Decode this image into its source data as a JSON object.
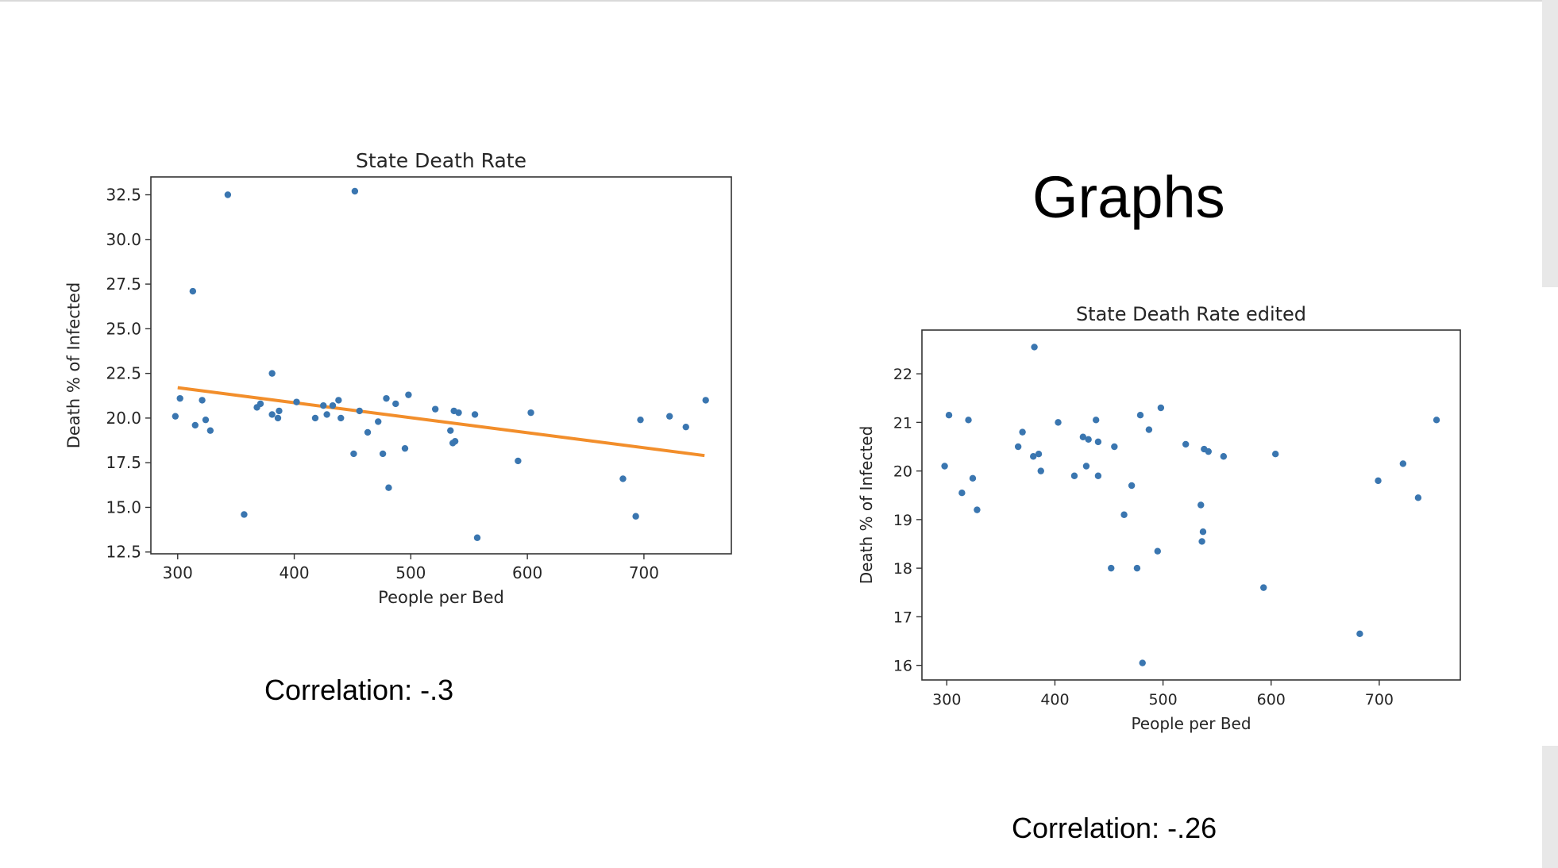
{
  "heading": "Graphs",
  "captions": {
    "left": "Correlation: -.3",
    "right": "Correlation: -.26"
  },
  "colors": {
    "points": "#3a76b0",
    "trend": "#f28e2b",
    "axes": "#333333",
    "side_strip": "#e8e8e8"
  },
  "chart_data": [
    {
      "type": "scatter",
      "title": "State Death Rate",
      "xlabel": "People per Bed",
      "ylabel": "Death % of Infected",
      "xlim": [
        277,
        775
      ],
      "ylim": [
        12.4,
        33.5
      ],
      "xticks": [
        300,
        400,
        500,
        600,
        700
      ],
      "yticks": [
        12.5,
        15.0,
        17.5,
        20.0,
        22.5,
        25.0,
        27.5,
        30.0,
        32.5
      ],
      "ytick_labels": [
        "12.5",
        "15.0",
        "17.5",
        "20.0",
        "22.5",
        "25.0",
        "27.5",
        "30.0",
        "32.5"
      ],
      "grid": false,
      "trendline": {
        "x": [
          300,
          752
        ],
        "y": [
          21.7,
          17.9
        ]
      },
      "points": [
        [
          298,
          20.1
        ],
        [
          302,
          21.1
        ],
        [
          313,
          27.1
        ],
        [
          315,
          19.6
        ],
        [
          321,
          21.0
        ],
        [
          324,
          19.9
        ],
        [
          328,
          19.3
        ],
        [
          343,
          32.5
        ],
        [
          357,
          14.6
        ],
        [
          368,
          20.6
        ],
        [
          371,
          20.8
        ],
        [
          381,
          22.5
        ],
        [
          381,
          20.2
        ],
        [
          386,
          20.0
        ],
        [
          387,
          20.4
        ],
        [
          402,
          20.9
        ],
        [
          418,
          20.0
        ],
        [
          425,
          20.7
        ],
        [
          428,
          20.2
        ],
        [
          433,
          20.7
        ],
        [
          438,
          21.0
        ],
        [
          440,
          20.0
        ],
        [
          451,
          18.0
        ],
        [
          452,
          32.7
        ],
        [
          456,
          20.4
        ],
        [
          463,
          19.2
        ],
        [
          472,
          19.8
        ],
        [
          476,
          18.0
        ],
        [
          479,
          21.1
        ],
        [
          481,
          16.1
        ],
        [
          487,
          20.8
        ],
        [
          495,
          18.3
        ],
        [
          498,
          21.3
        ],
        [
          521,
          20.5
        ],
        [
          534,
          19.3
        ],
        [
          536,
          18.6
        ],
        [
          537,
          20.4
        ],
        [
          538,
          18.7
        ],
        [
          541,
          20.3
        ],
        [
          555,
          20.2
        ],
        [
          557,
          13.3
        ],
        [
          592,
          17.6
        ],
        [
          603,
          20.3
        ],
        [
          682,
          16.6
        ],
        [
          693,
          14.5
        ],
        [
          697,
          19.9
        ],
        [
          722,
          20.1
        ],
        [
          736,
          19.5
        ],
        [
          753,
          21.0
        ]
      ]
    },
    {
      "type": "scatter",
      "title": "State Death Rate edited",
      "xlabel": "People per Bed",
      "ylabel": "Death % of Infected",
      "xlim": [
        277,
        775
      ],
      "ylim": [
        15.7,
        22.9
      ],
      "xticks": [
        300,
        400,
        500,
        600,
        700
      ],
      "yticks": [
        16,
        17,
        18,
        19,
        20,
        21,
        22
      ],
      "ytick_labels": [
        "16",
        "17",
        "18",
        "19",
        "20",
        "21",
        "22"
      ],
      "grid": false,
      "points": [
        [
          298,
          20.1
        ],
        [
          302,
          21.15
        ],
        [
          314,
          19.55
        ],
        [
          320,
          21.05
        ],
        [
          324,
          19.85
        ],
        [
          328,
          19.2
        ],
        [
          366,
          20.5
        ],
        [
          370,
          20.8
        ],
        [
          380,
          20.3
        ],
        [
          381,
          22.55
        ],
        [
          385,
          20.35
        ],
        [
          387,
          20.0
        ],
        [
          403,
          21.0
        ],
        [
          418,
          19.9
        ],
        [
          426,
          20.7
        ],
        [
          429,
          20.1
        ],
        [
          431,
          20.65
        ],
        [
          438,
          21.05
        ],
        [
          440,
          19.9
        ],
        [
          440,
          20.6
        ],
        [
          452,
          18.0
        ],
        [
          455,
          20.5
        ],
        [
          464,
          19.1
        ],
        [
          471,
          19.7
        ],
        [
          476,
          18.0
        ],
        [
          479,
          21.15
        ],
        [
          481,
          16.05
        ],
        [
          487,
          20.85
        ],
        [
          495,
          18.35
        ],
        [
          498,
          21.3
        ],
        [
          521,
          20.55
        ],
        [
          535,
          19.3
        ],
        [
          536,
          18.55
        ],
        [
          537,
          18.75
        ],
        [
          538,
          20.45
        ],
        [
          542,
          20.4
        ],
        [
          556,
          20.3
        ],
        [
          593,
          17.6
        ],
        [
          604,
          20.35
        ],
        [
          682,
          16.65
        ],
        [
          699,
          19.8
        ],
        [
          722,
          20.15
        ],
        [
          736,
          19.45
        ],
        [
          753,
          21.05
        ]
      ]
    }
  ]
}
